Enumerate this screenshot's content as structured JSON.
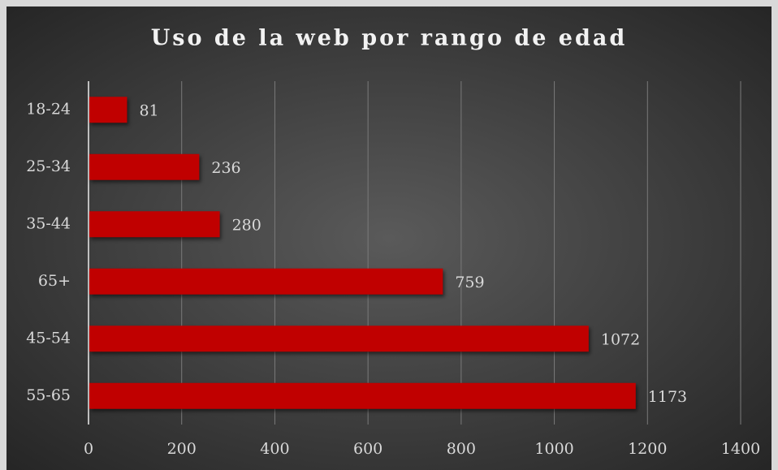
{
  "chart_data": {
    "type": "bar",
    "orientation": "horizontal",
    "title": "Uso de la web por rango de edad",
    "categories": [
      "18-24",
      "25-34",
      "35-44",
      "65+",
      "45-54",
      "55-65"
    ],
    "values": [
      81,
      236,
      280,
      759,
      1072,
      1173
    ],
    "color": "#c00000",
    "xlim": [
      0,
      1400
    ],
    "xticks": [
      0,
      200,
      400,
      600,
      800,
      1000,
      1200,
      1400
    ],
    "grid": true
  }
}
